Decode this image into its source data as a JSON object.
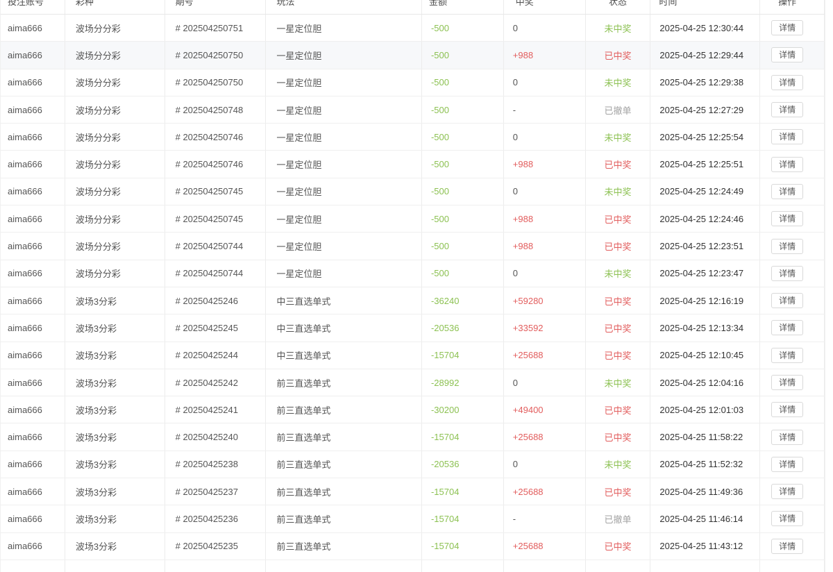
{
  "table": {
    "headers": [
      "投注账号",
      "彩种",
      "期号",
      "玩法",
      "金额",
      "中奖",
      "状态",
      "时间",
      "操作"
    ],
    "action_label": "详情",
    "highlighted_row_index": 1,
    "status_colors": {
      "win": "#e25d5d",
      "lose": "#8cc152",
      "cancel": "#a3a3a3"
    },
    "amount_color": "#8cc152",
    "payout_win_color": "#e25d5d",
    "rows": [
      {
        "account": "aima666",
        "lottery": "波场分分彩",
        "issue": "# 202504250751",
        "play": "一星定位胆",
        "amount": "-500",
        "payout": "0",
        "status": "未中奖",
        "status_type": "lose",
        "time": "2025-04-25 12:30:44"
      },
      {
        "account": "aima666",
        "lottery": "波场分分彩",
        "issue": "# 202504250750",
        "play": "一星定位胆",
        "amount": "-500",
        "payout": "+988",
        "status": "已中奖",
        "status_type": "win",
        "time": "2025-04-25 12:29:44"
      },
      {
        "account": "aima666",
        "lottery": "波场分分彩",
        "issue": "# 202504250750",
        "play": "一星定位胆",
        "amount": "-500",
        "payout": "0",
        "status": "未中奖",
        "status_type": "lose",
        "time": "2025-04-25 12:29:38"
      },
      {
        "account": "aima666",
        "lottery": "波场分分彩",
        "issue": "# 202504250748",
        "play": "一星定位胆",
        "amount": "-500",
        "payout": "-",
        "status": "已撤单",
        "status_type": "cancel",
        "time": "2025-04-25 12:27:29"
      },
      {
        "account": "aima666",
        "lottery": "波场分分彩",
        "issue": "# 202504250746",
        "play": "一星定位胆",
        "amount": "-500",
        "payout": "0",
        "status": "未中奖",
        "status_type": "lose",
        "time": "2025-04-25 12:25:54"
      },
      {
        "account": "aima666",
        "lottery": "波场分分彩",
        "issue": "# 202504250746",
        "play": "一星定位胆",
        "amount": "-500",
        "payout": "+988",
        "status": "已中奖",
        "status_type": "win",
        "time": "2025-04-25 12:25:51"
      },
      {
        "account": "aima666",
        "lottery": "波场分分彩",
        "issue": "# 202504250745",
        "play": "一星定位胆",
        "amount": "-500",
        "payout": "0",
        "status": "未中奖",
        "status_type": "lose",
        "time": "2025-04-25 12:24:49"
      },
      {
        "account": "aima666",
        "lottery": "波场分分彩",
        "issue": "# 202504250745",
        "play": "一星定位胆",
        "amount": "-500",
        "payout": "+988",
        "status": "已中奖",
        "status_type": "win",
        "time": "2025-04-25 12:24:46"
      },
      {
        "account": "aima666",
        "lottery": "波场分分彩",
        "issue": "# 202504250744",
        "play": "一星定位胆",
        "amount": "-500",
        "payout": "+988",
        "status": "已中奖",
        "status_type": "win",
        "time": "2025-04-25 12:23:51"
      },
      {
        "account": "aima666",
        "lottery": "波场分分彩",
        "issue": "# 202504250744",
        "play": "一星定位胆",
        "amount": "-500",
        "payout": "0",
        "status": "未中奖",
        "status_type": "lose",
        "time": "2025-04-25 12:23:47"
      },
      {
        "account": "aima666",
        "lottery": "波场3分彩",
        "issue": "# 20250425246",
        "play": "中三直选单式",
        "amount": "-36240",
        "payout": "+59280",
        "status": "已中奖",
        "status_type": "win",
        "time": "2025-04-25 12:16:19"
      },
      {
        "account": "aima666",
        "lottery": "波场3分彩",
        "issue": "# 20250425245",
        "play": "中三直选单式",
        "amount": "-20536",
        "payout": "+33592",
        "status": "已中奖",
        "status_type": "win",
        "time": "2025-04-25 12:13:34"
      },
      {
        "account": "aima666",
        "lottery": "波场3分彩",
        "issue": "# 20250425244",
        "play": "中三直选单式",
        "amount": "-15704",
        "payout": "+25688",
        "status": "已中奖",
        "status_type": "win",
        "time": "2025-04-25 12:10:45"
      },
      {
        "account": "aima666",
        "lottery": "波场3分彩",
        "issue": "# 20250425242",
        "play": "前三直选单式",
        "amount": "-28992",
        "payout": "0",
        "status": "未中奖",
        "status_type": "lose",
        "time": "2025-04-25 12:04:16"
      },
      {
        "account": "aima666",
        "lottery": "波场3分彩",
        "issue": "# 20250425241",
        "play": "前三直选单式",
        "amount": "-30200",
        "payout": "+49400",
        "status": "已中奖",
        "status_type": "win",
        "time": "2025-04-25 12:01:03"
      },
      {
        "account": "aima666",
        "lottery": "波场3分彩",
        "issue": "# 20250425240",
        "play": "前三直选单式",
        "amount": "-15704",
        "payout": "+25688",
        "status": "已中奖",
        "status_type": "win",
        "time": "2025-04-25 11:58:22"
      },
      {
        "account": "aima666",
        "lottery": "波场3分彩",
        "issue": "# 20250425238",
        "play": "前三直选单式",
        "amount": "-20536",
        "payout": "0",
        "status": "未中奖",
        "status_type": "lose",
        "time": "2025-04-25 11:52:32"
      },
      {
        "account": "aima666",
        "lottery": "波场3分彩",
        "issue": "# 20250425237",
        "play": "前三直选单式",
        "amount": "-15704",
        "payout": "+25688",
        "status": "已中奖",
        "status_type": "win",
        "time": "2025-04-25 11:49:36"
      },
      {
        "account": "aima666",
        "lottery": "波场3分彩",
        "issue": "# 20250425236",
        "play": "前三直选单式",
        "amount": "-15704",
        "payout": "-",
        "status": "已撤单",
        "status_type": "cancel",
        "time": "2025-04-25 11:46:14"
      },
      {
        "account": "aima666",
        "lottery": "波场3分彩",
        "issue": "# 20250425235",
        "play": "前三直选单式",
        "amount": "-15704",
        "payout": "+25688",
        "status": "已中奖",
        "status_type": "win",
        "time": "2025-04-25 11:43:12"
      }
    ]
  }
}
